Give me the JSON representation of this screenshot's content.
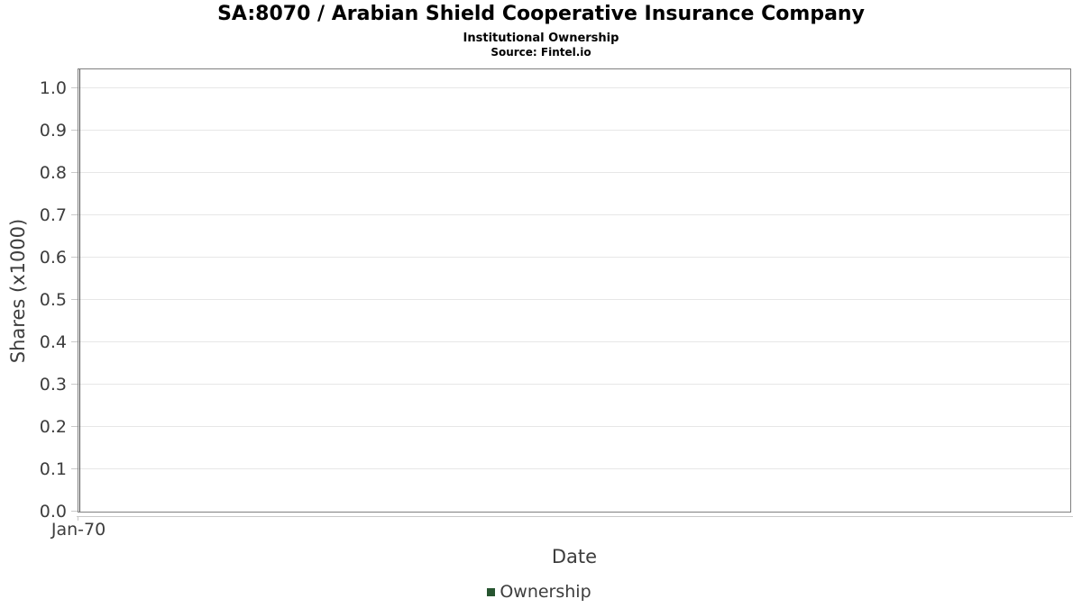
{
  "header": {
    "title": "SA:8070 / Arabian Shield Cooperative Insurance Company",
    "subtitle": "Institutional Ownership",
    "source": "Source: Fintel.io"
  },
  "chart_data": {
    "type": "line",
    "title": "SA:8070 / Arabian Shield Cooperative Insurance Company",
    "subtitle": "Institutional Ownership",
    "source": "Source: Fintel.io",
    "xlabel": "Date",
    "ylabel": "Shares (x1000)",
    "x_tick_labels": [
      "Jan-70"
    ],
    "y_tick_labels": [
      "0.0",
      "0.1",
      "0.2",
      "0.3",
      "0.4",
      "0.5",
      "0.6",
      "0.7",
      "0.8",
      "0.9",
      "1.0"
    ],
    "ylim": [
      0.0,
      1.05
    ],
    "grid": "horizontal",
    "legend_position": "bottom-center",
    "series": [
      {
        "name": "Ownership",
        "color": "#275530",
        "x": [],
        "values": []
      }
    ]
  },
  "legend": {
    "items": [
      {
        "label": "Ownership",
        "color": "#275530"
      }
    ]
  },
  "colors": {
    "background": "#ffffff",
    "plot_border": "#7f7f7f",
    "axis_line": "#555555",
    "gridline": "#e7e7e7",
    "tick_mark": "#c9c9c9",
    "tick_text": "#3d3d3d",
    "title_text": "#000000",
    "legend_marker": "#275530"
  }
}
